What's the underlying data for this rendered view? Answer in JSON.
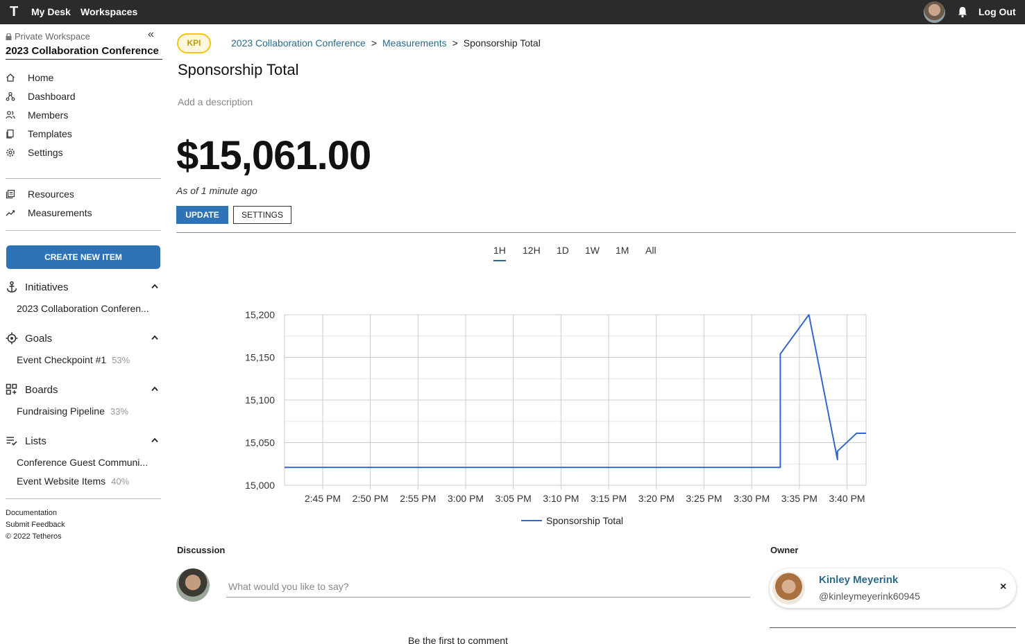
{
  "topbar": {
    "logo": "T",
    "nav": [
      "My Desk",
      "Workspaces"
    ],
    "logout": "Log Out"
  },
  "sidebar": {
    "workspace_label": "Private Workspace",
    "workspace_title": "2023 Collaboration Conference",
    "nav_items": [
      {
        "label": "Home",
        "icon": "home-icon"
      },
      {
        "label": "Dashboard",
        "icon": "dashboard-icon"
      },
      {
        "label": "Members",
        "icon": "members-icon"
      },
      {
        "label": "Templates",
        "icon": "templates-icon"
      },
      {
        "label": "Settings",
        "icon": "settings-icon"
      }
    ],
    "secondary_items": [
      {
        "label": "Resources",
        "icon": "resources-icon"
      },
      {
        "label": "Measurements",
        "icon": "measurements-icon"
      }
    ],
    "create_button": "CREATE NEW ITEM",
    "sections": {
      "initiatives": {
        "title": "Initiatives",
        "items": [
          {
            "label": "2023 Collaboration Conferen...",
            "pct": ""
          }
        ]
      },
      "goals": {
        "title": "Goals",
        "items": [
          {
            "label": "Event Checkpoint #1",
            "pct": "53%"
          }
        ]
      },
      "boards": {
        "title": "Boards",
        "items": [
          {
            "label": "Fundraising Pipeline",
            "pct": "33%"
          }
        ]
      },
      "lists": {
        "title": "Lists",
        "items": [
          {
            "label": "Conference Guest Communi...",
            "pct": ""
          },
          {
            "label": "Event Website Items",
            "pct": "40%"
          }
        ]
      }
    },
    "footer": [
      "Documentation",
      "Submit Feedback",
      "© 2022 Tetheros"
    ]
  },
  "main": {
    "badge": "KPI",
    "breadcrumb": [
      "2023 Collaboration Conference",
      "Measurements",
      "Sponsorship Total"
    ],
    "breadcrumb_sep": ">",
    "title": "Sponsorship Total",
    "description_placeholder": "Add a description",
    "value": "$15,061.00",
    "as_of": "As of 1 minute ago",
    "update_button": "UPDATE",
    "settings_button": "SETTINGS",
    "ranges": [
      "1H",
      "12H",
      "1D",
      "1W",
      "1M",
      "All"
    ],
    "active_range": "1H",
    "discussion_label": "Discussion",
    "comment_placeholder": "What would you like to say?",
    "empty_comments": "Be the first to comment",
    "owner_label": "Owner",
    "owner": {
      "name": "Kinley Meyerink",
      "handle": "@kinleymeyerink60945",
      "close": "×"
    }
  },
  "chart_data": {
    "type": "line",
    "title": "",
    "xlabel": "",
    "ylabel": "",
    "x_ticks": [
      "2:45 PM",
      "2:50 PM",
      "2:55 PM",
      "3:00 PM",
      "3:05 PM",
      "3:10 PM",
      "3:15 PM",
      "3:20 PM",
      "3:25 PM",
      "3:30 PM",
      "3:35 PM",
      "3:40 PM"
    ],
    "y_ticks": [
      "15,000",
      "15,050",
      "15,100",
      "15,150",
      "15,200"
    ],
    "xlim": [
      "2:41 PM",
      "3:42 PM"
    ],
    "ylim": [
      15000,
      15200
    ],
    "legend_position": "bottom",
    "color": "#3366cc",
    "series": [
      {
        "name": "Sponsorship Total",
        "points": [
          {
            "x": "2:41 PM",
            "y": 15021
          },
          {
            "x": "3:33 PM",
            "y": 15021
          },
          {
            "x": "3:33 PM",
            "y": 15154
          },
          {
            "x": "3:36 PM",
            "y": 15200
          },
          {
            "x": "3:39 PM",
            "y": 15030
          },
          {
            "x": "3:39 PM",
            "y": 15040
          },
          {
            "x": "3:41 PM",
            "y": 15061
          },
          {
            "x": "3:42 PM",
            "y": 15061
          }
        ]
      }
    ]
  }
}
